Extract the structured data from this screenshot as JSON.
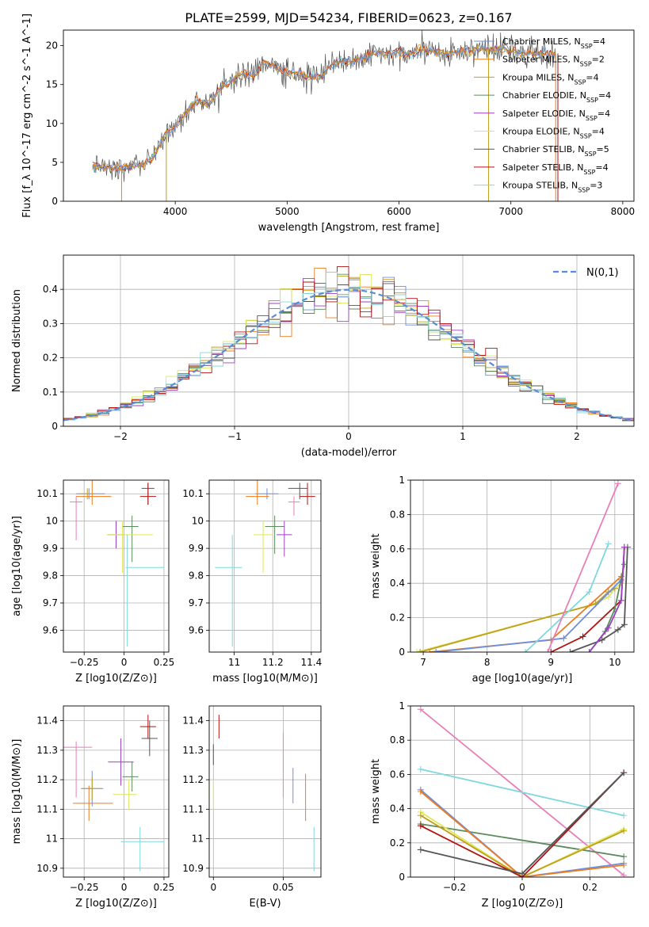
{
  "title": "PLATE=2599, MJD=54234, FIBERID=0623, z=0.167",
  "colors": {
    "Chabrier MILES": "#6b8fe0",
    "Salpeter MILES": "#ee7b1d",
    "Kroupa MILES": "#c29e1d",
    "Chabrier ELODIE": "#5b8a5b",
    "Salpeter ELODIE": "#9f3fc4",
    "Kroupa ELODIE": "#dde85a",
    "Chabrier STELIB": "#555555",
    "Salpeter STELIB": "#b31212",
    "Kroupa STELIB": "#7fd8dd",
    "pink": "#e87fb8",
    "gauss": "#5a8bd6"
  },
  "chart_data": [
    {
      "id": "spectrum",
      "type": "line",
      "xlabel": "wavelength [Angstrom, rest frame]",
      "ylabel": "Flux [f_λ 10^-17 erg cm^-2 s^-1 A^-1]",
      "xlim": [
        3000,
        8100
      ],
      "ylim": [
        0,
        22
      ],
      "xticks": [
        4000,
        5000,
        6000,
        7000,
        8000
      ],
      "yticks": [
        0,
        5,
        10,
        15,
        20
      ],
      "legend_position": "top-right",
      "legend": [
        {
          "name": "Chabrier MILES",
          "nssp": "4"
        },
        {
          "name": "Salpeter MILES",
          "nssp": "2"
        },
        {
          "name": "Kroupa MILES",
          "nssp": "4"
        },
        {
          "name": "Chabrier ELODIE",
          "nssp": "4"
        },
        {
          "name": "Salpeter ELODIE",
          "nssp": "4"
        },
        {
          "name": "Kroupa ELODIE",
          "nssp": "4"
        },
        {
          "name": "Chabrier STELIB",
          "nssp": "5"
        },
        {
          "name": "Salpeter STELIB",
          "nssp": "4"
        },
        {
          "name": "Kroupa STELIB",
          "nssp": "3"
        }
      ],
      "continuum": [
        [
          3260,
          4.5
        ],
        [
          3500,
          4.3
        ],
        [
          3700,
          4.7
        ],
        [
          3800,
          5.5
        ],
        [
          3900,
          8.5
        ],
        [
          4000,
          9.5
        ],
        [
          4100,
          11.5
        ],
        [
          4200,
          13
        ],
        [
          4300,
          12.5
        ],
        [
          4400,
          14.5
        ],
        [
          4500,
          15.5
        ],
        [
          4600,
          16.5
        ],
        [
          4700,
          16
        ],
        [
          4800,
          18
        ],
        [
          4900,
          17
        ],
        [
          5000,
          16.5
        ],
        [
          5100,
          16.5
        ],
        [
          5200,
          16
        ],
        [
          5300,
          16
        ],
        [
          5400,
          17.5
        ],
        [
          5500,
          18
        ],
        [
          5600,
          18
        ],
        [
          5700,
          18.5
        ],
        [
          5800,
          19
        ],
        [
          5900,
          19
        ],
        [
          6000,
          19
        ],
        [
          6100,
          19
        ],
        [
          6200,
          19.5
        ],
        [
          6300,
          19.5
        ],
        [
          6400,
          19
        ],
        [
          6500,
          19
        ],
        [
          6600,
          19.5
        ],
        [
          6700,
          19.5
        ],
        [
          6800,
          19.5
        ],
        [
          6900,
          19.5
        ],
        [
          7000,
          19.5
        ],
        [
          7100,
          19
        ],
        [
          7200,
          19
        ],
        [
          7300,
          19
        ],
        [
          7400,
          19
        ]
      ]
    },
    {
      "id": "residuals",
      "type": "histogram",
      "xlabel": "(data-model)/error",
      "ylabel": "Normed distribution",
      "xlim": [
        -2.5,
        2.5
      ],
      "ylim": [
        0,
        0.5
      ],
      "xticks": [
        -2,
        -1,
        0,
        1,
        2
      ],
      "yticks": [
        0.0,
        0.1,
        0.2,
        0.3,
        0.4
      ],
      "grid": true,
      "legend_position": "top-right",
      "gauss_label": "N(0,1)",
      "bin_width": 0.1
    },
    {
      "id": "age-vs-Z",
      "type": "errorbar",
      "xlabel": "Z [log10(Z/Z⊙)]",
      "ylabel": "age [log10(age/yr)]",
      "xlim": [
        -0.38,
        0.28
      ],
      "ylim": [
        9.52,
        10.15
      ],
      "xticks": [
        -0.25,
        0.0,
        0.25
      ],
      "yticks": [
        9.6,
        9.7,
        9.8,
        9.9,
        10.0,
        10.1
      ],
      "points": [
        {
          "model": "Chabrier MILES",
          "x": -0.22,
          "xerr": [
            0.08,
            0.1
          ],
          "y": 10.1,
          "yerr": [
            0.02,
            0.02
          ]
        },
        {
          "model": "Salpeter MILES",
          "x": -0.2,
          "xerr": [
            0.1,
            0.12
          ],
          "y": 10.09,
          "yerr": [
            0.03,
            0.06
          ]
        },
        {
          "model": "Kroupa MILES",
          "x": -0.23,
          "xerr": [
            0.05,
            0.05
          ],
          "y": 10.1,
          "yerr": [
            0.02,
            0.02
          ]
        },
        {
          "model": "Chabrier ELODIE",
          "x": 0.05,
          "xerr": [
            0.06,
            0.04
          ],
          "y": 9.98,
          "yerr": [
            0.13,
            0.04
          ]
        },
        {
          "model": "Salpeter ELODIE",
          "x": -0.05,
          "xerr": [
            0.05,
            0.05
          ],
          "y": 9.95,
          "yerr": [
            0.05,
            0.05
          ]
        },
        {
          "model": "Kroupa ELODIE",
          "x": -0.01,
          "xerr": [
            0.1,
            0.19
          ],
          "y": 9.95,
          "yerr": [
            0.14,
            0.05
          ]
        },
        {
          "model": "Chabrier STELIB",
          "x": 0.15,
          "xerr": [
            0.04,
            0.04
          ],
          "y": 10.12,
          "yerr": [
            0.06,
            0.02
          ]
        },
        {
          "model": "Salpeter STELIB",
          "x": 0.15,
          "xerr": [
            0.05,
            0.05
          ],
          "y": 10.09,
          "yerr": [
            0.03,
            0.05
          ]
        },
        {
          "model": "Kroupa STELIB",
          "x": 0.02,
          "xerr": [
            0.01,
            0.23
          ],
          "y": 9.83,
          "yerr": [
            0.29,
            0.12
          ]
        },
        {
          "model": "pink",
          "x": -0.3,
          "xerr": [
            0.04,
            0.04
          ],
          "y": 10.07,
          "yerr": [
            0.14,
            0.02
          ]
        }
      ]
    },
    {
      "id": "age-vs-mass",
      "type": "errorbar",
      "xlabel": "mass [log10(M/M⊙)]",
      "ylabel": "",
      "xlim": [
        10.87,
        11.45
      ],
      "ylim": [
        9.52,
        10.15
      ],
      "xticks": [
        11.0,
        11.2,
        11.4
      ],
      "yticks": [
        9.6,
        9.7,
        9.8,
        9.9,
        10.0,
        10.1
      ],
      "points": [
        {
          "model": "Chabrier MILES",
          "x": 11.17,
          "xerr": [
            0.06,
            0.06
          ],
          "y": 10.1,
          "yerr": [
            0.02,
            0.02
          ]
        },
        {
          "model": "Salpeter MILES",
          "x": 11.12,
          "xerr": [
            0.06,
            0.06
          ],
          "y": 10.09,
          "yerr": [
            0.03,
            0.06
          ]
        },
        {
          "model": "Chabrier ELODIE",
          "x": 11.21,
          "xerr": [
            0.05,
            0.05
          ],
          "y": 9.98,
          "yerr": [
            0.1,
            0.04
          ]
        },
        {
          "model": "Salpeter ELODIE",
          "x": 11.26,
          "xerr": [
            0.04,
            0.04
          ],
          "y": 9.95,
          "yerr": [
            0.08,
            0.05
          ]
        },
        {
          "model": "Kroupa ELODIE",
          "x": 11.15,
          "xerr": [
            0.05,
            0.05
          ],
          "y": 9.95,
          "yerr": [
            0.14,
            0.05
          ]
        },
        {
          "model": "Chabrier STELIB",
          "x": 11.34,
          "xerr": [
            0.06,
            0.04
          ],
          "y": 10.12,
          "yerr": [
            0.04,
            0.02
          ]
        },
        {
          "model": "Salpeter STELIB",
          "x": 11.38,
          "xerr": [
            0.04,
            0.04
          ],
          "y": 10.09,
          "yerr": [
            0.03,
            0.05
          ]
        },
        {
          "model": "Kroupa STELIB",
          "x": 10.99,
          "xerr": [
            0.09,
            0.05
          ],
          "y": 9.83,
          "yerr": [
            0.29,
            0.12
          ]
        },
        {
          "model": "pink",
          "x": 11.31,
          "xerr": [
            0.03,
            0.03
          ],
          "y": 10.07,
          "yerr": [
            0.05,
            0.02
          ]
        }
      ]
    },
    {
      "id": "weight-vs-age",
      "type": "line",
      "xlabel": "age [log10(age/yr)]",
      "ylabel": "mass weight",
      "xlim": [
        6.8,
        10.3
      ],
      "ylim": [
        0,
        1
      ],
      "xticks": [
        7,
        8,
        9,
        10
      ],
      "yticks": [
        0.0,
        0.2,
        0.4,
        0.6,
        0.8,
        1.0
      ],
      "grid": true,
      "series": [
        {
          "model": "Kroupa ELODIE",
          "x": [
            6.9,
            9.6,
            9.9,
            10.0,
            10.1
          ],
          "y": [
            0.0,
            0.27,
            0.32,
            0.37,
            0.4
          ]
        },
        {
          "model": "Kroupa MILES",
          "x": [
            6.95,
            9.7,
            9.9,
            10.0
          ],
          "y": [
            0.0,
            0.28,
            0.35,
            0.37
          ]
        },
        {
          "model": "Salpeter MILES",
          "x": [
            7.1,
            9.0,
            10.1
          ],
          "y": [
            0.0,
            0.07,
            0.44
          ]
        },
        {
          "model": "Chabrier MILES",
          "x": [
            7.2,
            9.2,
            10.1
          ],
          "y": [
            0.0,
            0.08,
            0.42
          ]
        },
        {
          "model": "Kroupa STELIB",
          "x": [
            8.6,
            9.6,
            9.9
          ],
          "y": [
            0.0,
            0.35,
            0.63
          ]
        },
        {
          "model": "pink",
          "x": [
            8.95,
            10.05
          ],
          "y": [
            0.0,
            0.98
          ]
        },
        {
          "model": "Salpeter STELIB",
          "x": [
            9.0,
            9.5,
            10.1,
            10.15
          ],
          "y": [
            0.0,
            0.09,
            0.3,
            0.61
          ]
        },
        {
          "model": "Chabrier STELIB",
          "x": [
            9.3,
            9.8,
            10.05,
            10.15,
            10.2
          ],
          "y": [
            0.0,
            0.07,
            0.13,
            0.16,
            0.61
          ]
        },
        {
          "model": "Chabrier ELODIE",
          "x": [
            9.6,
            9.85,
            10.0,
            10.15
          ],
          "y": [
            0.0,
            0.12,
            0.25,
            0.51
          ]
        },
        {
          "model": "Salpeter ELODIE",
          "x": [
            9.6,
            9.9,
            10.1,
            10.15
          ],
          "y": [
            0.0,
            0.14,
            0.3,
            0.61
          ]
        }
      ]
    },
    {
      "id": "mass-vs-Z",
      "type": "errorbar",
      "xlabel": "Z [log10(Z/Z⊙)]",
      "ylabel": "mass [log10(M/M⊙)]",
      "xlim": [
        -0.38,
        0.28
      ],
      "ylim": [
        10.87,
        11.45
      ],
      "xticks": [
        -0.25,
        0.0,
        0.25
      ],
      "yticks": [
        10.9,
        11.0,
        11.1,
        11.2,
        11.3,
        11.4
      ],
      "points": [
        {
          "model": "Chabrier MILES",
          "x": -0.2,
          "xerr": [
            0.07,
            0.07
          ],
          "y": 11.17,
          "yerr": [
            0.06,
            0.06
          ]
        },
        {
          "model": "Salpeter MILES",
          "x": -0.22,
          "xerr": [
            0.1,
            0.15
          ],
          "y": 11.12,
          "yerr": [
            0.06,
            0.06
          ]
        },
        {
          "model": "Kroupa MILES",
          "x": -0.2,
          "xerr": [
            0.06,
            0.06
          ],
          "y": 11.17,
          "yerr": [
            0.04,
            0.04
          ]
        },
        {
          "model": "Chabrier ELODIE",
          "x": 0.05,
          "xerr": [
            0.06,
            0.04
          ],
          "y": 11.21,
          "yerr": [
            0.05,
            0.05
          ]
        },
        {
          "model": "Salpeter ELODIE",
          "x": -0.02,
          "xerr": [
            0.08,
            0.08
          ],
          "y": 11.26,
          "yerr": [
            0.08,
            0.08
          ]
        },
        {
          "model": "Kroupa ELODIE",
          "x": 0.03,
          "xerr": [
            0.1,
            0.05
          ],
          "y": 11.15,
          "yerr": [
            0.05,
            0.05
          ]
        },
        {
          "model": "Chabrier STELIB",
          "x": 0.16,
          "xerr": [
            0.05,
            0.05
          ],
          "y": 11.34,
          "yerr": [
            0.06,
            0.06
          ]
        },
        {
          "model": "Salpeter STELIB",
          "x": 0.15,
          "xerr": [
            0.05,
            0.05
          ],
          "y": 11.38,
          "yerr": [
            0.04,
            0.04
          ]
        },
        {
          "model": "Kroupa STELIB",
          "x": 0.1,
          "xerr": [
            0.12,
            0.15
          ],
          "y": 10.99,
          "yerr": [
            0.1,
            0.05
          ]
        },
        {
          "model": "pink",
          "x": -0.3,
          "xerr": [
            0.1,
            0.1
          ],
          "y": 11.31,
          "yerr": [
            0.17,
            0.02
          ]
        }
      ]
    },
    {
      "id": "mass-vs-ebv",
      "type": "errorbar",
      "xlabel": "E(B-V)",
      "ylabel": "",
      "xlim": [
        -0.003,
        0.077
      ],
      "ylim": [
        10.87,
        11.45
      ],
      "xticks": [
        0.0,
        0.05
      ],
      "yticks": [
        10.9,
        11.0,
        11.1,
        11.2,
        11.3,
        11.4
      ],
      "points": [
        {
          "model": "Kroupa ELODIE",
          "x": 0.0,
          "xerr": [
            0,
            0
          ],
          "y": 11.18,
          "yerr": [
            0.08,
            0.02
          ]
        },
        {
          "model": "Chabrier STELIB",
          "x": 0.0,
          "xerr": [
            0,
            0
          ],
          "y": 11.3,
          "yerr": [
            0.05,
            0.02
          ]
        },
        {
          "model": "Salpeter STELIB",
          "x": 0.004,
          "xerr": [
            0,
            0
          ],
          "y": 11.38,
          "yerr": [
            0.04,
            0.04
          ]
        },
        {
          "model": "pink",
          "x": 0.05,
          "xerr": [
            0,
            0
          ],
          "y": 11.25,
          "yerr": [
            0.11,
            0.11
          ]
        },
        {
          "model": "Chabrier MILES",
          "x": 0.057,
          "xerr": [
            0,
            0
          ],
          "y": 11.18,
          "yerr": [
            0.06,
            0.06
          ]
        },
        {
          "model": "Salpeter MILES",
          "x": 0.066,
          "xerr": [
            0,
            0
          ],
          "y": 11.14,
          "yerr": [
            0.08,
            0.08
          ]
        },
        {
          "model": "Kroupa STELIB",
          "x": 0.072,
          "xerr": [
            0,
            0
          ],
          "y": 10.97,
          "yerr": [
            0.08,
            0.07
          ]
        }
      ]
    },
    {
      "id": "weight-vs-Z",
      "type": "line",
      "xlabel": "Z [log10(Z/Z⊙)]",
      "ylabel": "mass weight",
      "xlim": [
        -0.33,
        0.33
      ],
      "ylim": [
        0,
        1
      ],
      "xticks": [
        -0.2,
        0.0,
        0.2
      ],
      "yticks": [
        0.0,
        0.2,
        0.4,
        0.6,
        0.8,
        1.0
      ],
      "grid": true,
      "series": [
        {
          "model": "pink",
          "x": [
            -0.3,
            0.3
          ],
          "y": [
            0.98,
            0.01
          ]
        },
        {
          "model": "Kroupa STELIB",
          "x": [
            -0.3,
            0.3
          ],
          "y": [
            0.63,
            0.36
          ]
        },
        {
          "model": "Chabrier ELODIE",
          "x": [
            -0.3,
            0.3
          ],
          "y": [
            0.31,
            0.12
          ]
        },
        {
          "model": "Chabrier MILES",
          "x": [
            -0.3,
            0.0,
            0.3
          ],
          "y": [
            0.51,
            0.0,
            0.08
          ]
        },
        {
          "model": "Salpeter MILES",
          "x": [
            -0.3,
            0.0,
            0.3
          ],
          "y": [
            0.5,
            0.0,
            0.07
          ]
        },
        {
          "model": "Kroupa ELODIE",
          "x": [
            -0.3,
            0.0,
            0.3
          ],
          "y": [
            0.38,
            0.0,
            0.28
          ]
        },
        {
          "model": "Kroupa MILES",
          "x": [
            -0.3,
            0.0,
            0.3
          ],
          "y": [
            0.36,
            0.0,
            0.27
          ]
        },
        {
          "model": "Salpeter STELIB",
          "x": [
            -0.3,
            0.0,
            0.3
          ],
          "y": [
            0.3,
            0.0,
            0.61
          ]
        },
        {
          "model": "Chabrier STELIB",
          "x": [
            -0.3,
            0.0,
            0.3
          ],
          "y": [
            0.16,
            0.02,
            0.61
          ]
        }
      ]
    }
  ]
}
